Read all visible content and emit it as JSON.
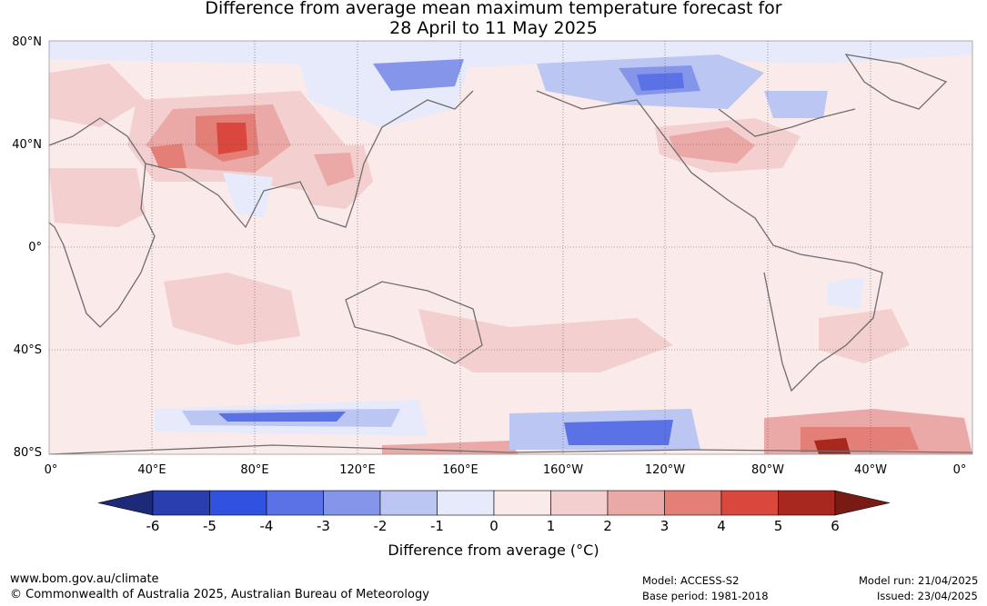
{
  "map": {
    "title_line1": "Difference from average mean maximum temperature forecast for",
    "title_line2": "28 April to 11 May 2025",
    "lat_labels": [
      "80°N",
      "40°N",
      "0°",
      "40°S",
      "80°S"
    ],
    "lon_labels": [
      "0°",
      "40°E",
      "80°E",
      "120°E",
      "160°E",
      "160°W",
      "120°W",
      "80°W",
      "40°W",
      "0°"
    ],
    "colorbar": {
      "ticks": [
        "-6",
        "-5",
        "-4",
        "-3",
        "-2",
        "-1",
        "0",
        "1",
        "2",
        "3",
        "4",
        "5",
        "6"
      ],
      "colors": [
        "#1c2a78",
        "#2a3eb0",
        "#3152e0",
        "#5a72e6",
        "#8596ea",
        "#bcc6f2",
        "#e6eafa",
        "#fbeaea",
        "#f3cfcf",
        "#eaa8a6",
        "#e47f78",
        "#d9473d",
        "#a8271f",
        "#7a1a14"
      ],
      "label": "Difference from average (°C)"
    },
    "footer": {
      "website": "www.bom.gov.au/climate",
      "copyright": "© Commonwealth of Australia 2025, Australian Bureau of Meteorology",
      "model": "Model: ACCESS-S2",
      "base_period": "Base period: 1981-2018",
      "model_run": "Model run: 21/04/2025",
      "issued": "Issued: 23/04/2025"
    }
  }
}
